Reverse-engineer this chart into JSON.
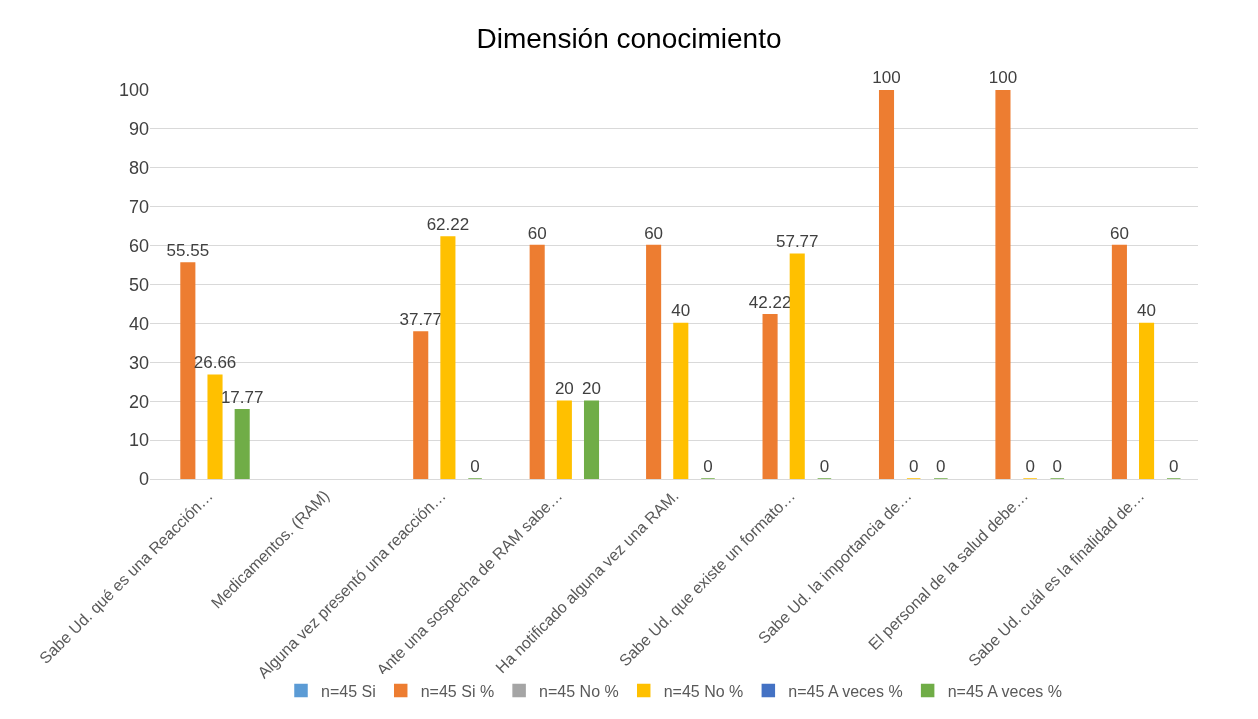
{
  "chart_data": {
    "type": "bar",
    "title": "Dimensión conocimiento",
    "categories": [
      "Sabe Ud. qué es una Reacción…",
      "Medicamentos. (RAM)",
      "Alguna vez presentó una reacción…",
      "Ante una sospecha de RAM sabe…",
      "Ha notificado alguna vez una RAM.",
      "Sabe Ud. que existe un formato…",
      "Sabe Ud. la importancia de…",
      "El personal de la salud debe…",
      "Sabe Ud. cuál es la finalidad de…"
    ],
    "series": [
      {
        "name": "n=45 Si",
        "color": "#5b9bd5",
        "values": [
          null,
          null,
          null,
          null,
          null,
          null,
          null,
          null,
          null
        ]
      },
      {
        "name": "n=45 Si %",
        "color": "#ed7d31",
        "values": [
          55.55,
          null,
          37.77,
          60,
          60,
          42.22,
          100,
          100,
          60
        ]
      },
      {
        "name": "n=45 No %",
        "color": "#a5a5a5",
        "values": [
          null,
          null,
          null,
          null,
          null,
          null,
          null,
          null,
          null
        ]
      },
      {
        "name": "n=45 No %",
        "color": "#ffc000",
        "values": [
          26.66,
          null,
          62.22,
          20,
          40,
          57.77,
          0,
          0,
          40
        ]
      },
      {
        "name": "n=45 A veces %",
        "color": "#4472c4",
        "values": [
          null,
          null,
          null,
          null,
          null,
          null,
          null,
          null,
          null
        ]
      },
      {
        "name": "n=45 A veces %",
        "color": "#70ad47",
        "values": [
          17.77,
          null,
          0,
          20,
          0,
          0,
          0,
          0,
          0
        ]
      }
    ],
    "ylim": [
      0,
      100
    ],
    "yticks": [
      0,
      10,
      20,
      30,
      40,
      50,
      60,
      70,
      80,
      90,
      100
    ],
    "grid": "y",
    "legend": "bottom",
    "data_labels": true
  }
}
